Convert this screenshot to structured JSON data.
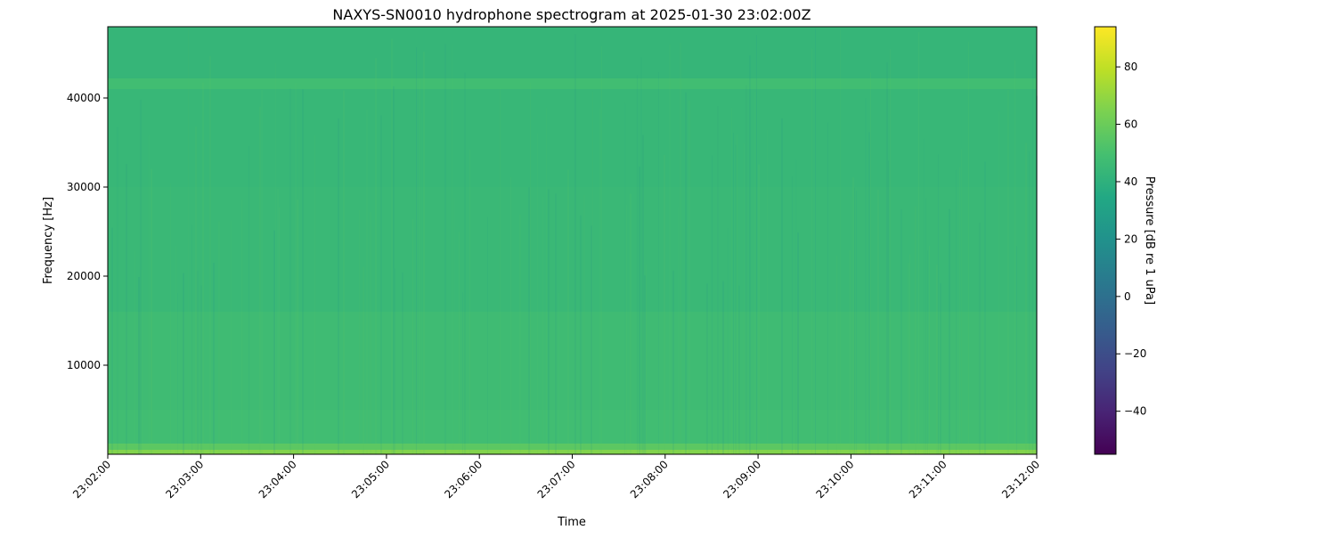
{
  "chart_data": {
    "type": "heatmap",
    "title": "NAXYS-SN0010 hydrophone spectrogram at 2025-01-30 23:02:00Z",
    "xlabel": "Time",
    "ylabel": "Frequency [Hz]",
    "colorbar_label": "Pressure [dB re 1 uPa]",
    "colormap": "viridis",
    "xlim": [
      "23:02:00",
      "23:12:00"
    ],
    "x_ticks": [
      "23:02:00",
      "23:03:00",
      "23:04:00",
      "23:05:00",
      "23:06:00",
      "23:07:00",
      "23:08:00",
      "23:09:00",
      "23:10:00",
      "23:11:00",
      "23:12:00"
    ],
    "ylim": [
      0,
      48000
    ],
    "y_ticks": [
      10000,
      20000,
      30000,
      40000
    ],
    "y_tick_labels": [
      "10000",
      "20000",
      "30000",
      "40000"
    ],
    "clim": [
      -55,
      94
    ],
    "colorbar_ticks": [
      -40,
      -20,
      0,
      20,
      40,
      60,
      80
    ],
    "colorbar_tick_labels": [
      "−40",
      "−20",
      "0",
      "20",
      "40",
      "60",
      "80"
    ],
    "frequency_profile": [
      {
        "f_low": 0,
        "f_high": 500,
        "db": 66
      },
      {
        "f_low": 500,
        "f_high": 1200,
        "db": 56
      },
      {
        "f_low": 1200,
        "f_high": 5000,
        "db": 48
      },
      {
        "f_low": 5000,
        "f_high": 16000,
        "db": 47
      },
      {
        "f_low": 16000,
        "f_high": 30000,
        "db": 45
      },
      {
        "f_low": 30000,
        "f_high": 41000,
        "db": 44
      },
      {
        "f_low": 41000,
        "f_high": 42200,
        "db": 48
      },
      {
        "f_low": 42200,
        "f_high": 48000,
        "db": 43
      }
    ]
  }
}
